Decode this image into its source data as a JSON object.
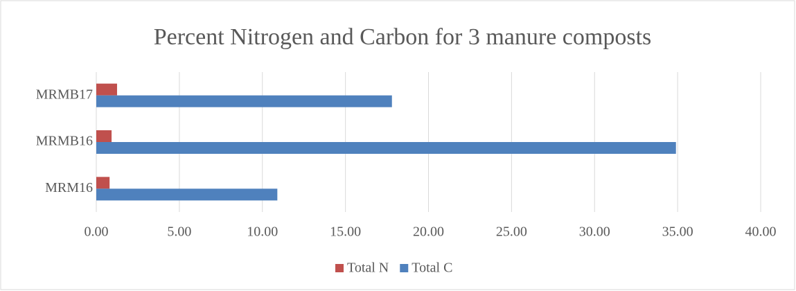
{
  "chart_data": {
    "type": "hbar",
    "title": "Percent Nitrogen and Carbon for 3 manure composts",
    "categories": [
      "MRM16",
      "MRMB16",
      "MRMB17"
    ],
    "series": [
      {
        "name": "Total N",
        "color": "#c0504d",
        "values": [
          0.8,
          0.92,
          1.25
        ]
      },
      {
        "name": "Total C",
        "color": "#4f81bd",
        "values": [
          10.9,
          34.9,
          17.8
        ]
      }
    ],
    "xlim": [
      0,
      40
    ],
    "xticks": [
      {
        "value": 0,
        "label": "0.00"
      },
      {
        "value": 5,
        "label": "5.00"
      },
      {
        "value": 10,
        "label": "10.00"
      },
      {
        "value": 15,
        "label": "15.00"
      },
      {
        "value": 20,
        "label": "20.00"
      },
      {
        "value": 25,
        "label": "25.00"
      },
      {
        "value": 30,
        "label": "30.00"
      },
      {
        "value": 35,
        "label": "35.00"
      },
      {
        "value": 40,
        "label": "40.00"
      }
    ],
    "grid": true,
    "legend": "bottom"
  }
}
